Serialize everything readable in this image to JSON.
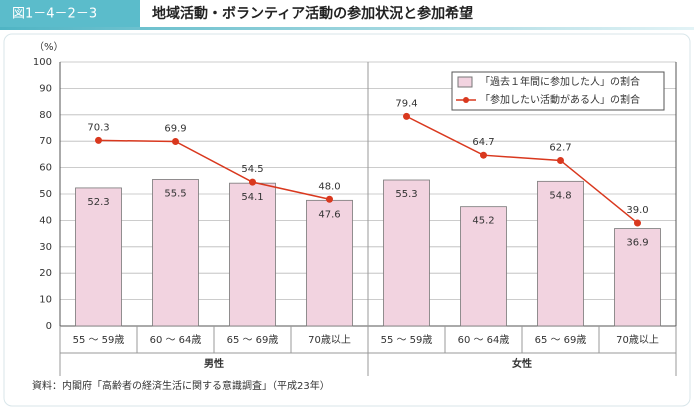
{
  "figure_label": "図1－4－2－3",
  "chart_data": {
    "type": "bar-line",
    "title": "地域活動・ボランティア活動の参加状況と参加希望",
    "y_unit": "（%）",
    "categories": [
      "55 ～ 59歳",
      "60 ～ 64歳",
      "65 ～ 69歳",
      "70歳以上",
      "55 ～ 59歳",
      "60 ～ 64歳",
      "65 ～ 69歳",
      "70歳以上"
    ],
    "groups": [
      "男性",
      "女性"
    ],
    "series": [
      {
        "name": "「過去１年間に参加した人」の割合",
        "type": "bar",
        "color": "#f2d3e0",
        "values": [
          52.3,
          55.5,
          54.1,
          47.6,
          55.3,
          45.2,
          54.8,
          36.9
        ]
      },
      {
        "name": "「参加したい活動がある人」の割合",
        "type": "line",
        "color": "#d9381e",
        "values": [
          70.3,
          69.9,
          54.5,
          48.0,
          79.4,
          64.7,
          62.7,
          39.0
        ],
        "value_labels": [
          "70.3",
          "69.9",
          "54.5",
          "48.0",
          "79.4",
          "64.7",
          "62.7",
          "39.0"
        ]
      }
    ],
    "ylim": [
      0,
      100
    ],
    "yticks": [
      0,
      10,
      20,
      30,
      40,
      50,
      60,
      70,
      80,
      90,
      100
    ],
    "grid": true,
    "legend": "upper right",
    "source": "資料：内閣府「高齢者の経済生活に関する意識調査」（平成23年）"
  }
}
